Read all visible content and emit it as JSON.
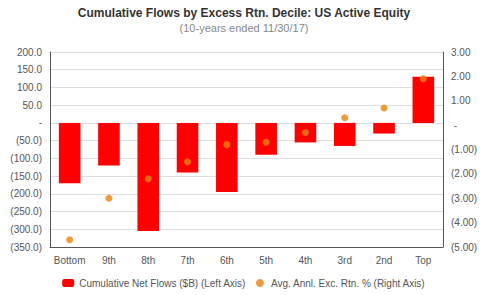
{
  "chart_data": {
    "type": "bar",
    "title": "Cumulative Flows by Excess Rtn. Decile: US Active Equity",
    "subtitle": "(10-years ended 11/30/17)",
    "categories": [
      "Bottom",
      "9th",
      "8th",
      "7th",
      "6th",
      "5th",
      "4th",
      "3rd",
      "2nd",
      "Top"
    ],
    "series": [
      {
        "name": "Cumulative Net Flows ($B) (Left Axis)",
        "type": "bar",
        "color": "#FF0000",
        "values": [
          -170,
          -120,
          -305,
          -140,
          -195,
          -90,
          -55,
          -65,
          -30,
          130
        ]
      },
      {
        "name": "Avg. Annl. Exc. Rtn. % (Right Axis)",
        "type": "scatter",
        "color": "#E8820C",
        "axis": "y2",
        "marker": "circle",
        "values": [
          -4.7,
          -3.0,
          -2.2,
          -1.5,
          -0.8,
          -0.7,
          -0.3,
          0.3,
          0.7,
          1.9
        ]
      }
    ],
    "ylim": [
      -350,
      200
    ],
    "yticks": [
      {
        "value": -350,
        "label": "(350.0)"
      },
      {
        "value": -300,
        "label": "(300.0)"
      },
      {
        "value": -250,
        "label": "(250.0)"
      },
      {
        "value": -200,
        "label": "(200.0)"
      },
      {
        "value": -150,
        "label": "(150.0)"
      },
      {
        "value": -100,
        "label": "(100.0)"
      },
      {
        "value": -50,
        "label": "(50.0)"
      },
      {
        "value": 0,
        "label": " -"
      },
      {
        "value": 50,
        "label": "50.0"
      },
      {
        "value": 100,
        "label": "100.0"
      },
      {
        "value": 150,
        "label": "150.0"
      },
      {
        "value": 200,
        "label": "200.0"
      }
    ],
    "y2lim": [
      -5.0,
      3.0
    ],
    "y2ticks": [
      {
        "value": -5.0,
        "label": "(5.00)"
      },
      {
        "value": -4.0,
        "label": "(4.00)"
      },
      {
        "value": -3.0,
        "label": "(3.00)"
      },
      {
        "value": -2.0,
        "label": "(2.00)"
      },
      {
        "value": -1.0,
        "label": "(1.00)"
      },
      {
        "value": 0.0,
        "label": " -"
      },
      {
        "value": 1.0,
        "label": "1.00"
      },
      {
        "value": 2.0,
        "label": "2.00"
      },
      {
        "value": 3.0,
        "label": "3.00"
      }
    ],
    "grid": true,
    "legend": "bottom"
  }
}
